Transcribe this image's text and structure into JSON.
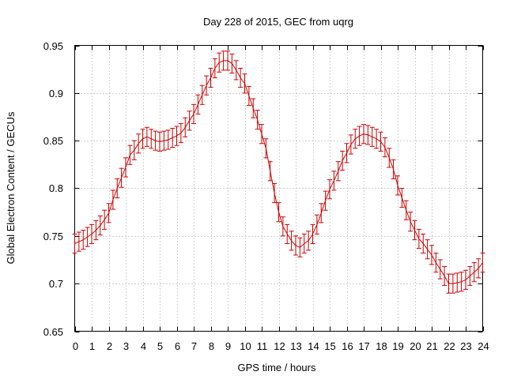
{
  "chart_data": {
    "type": "line",
    "title": "Day 228 of 2015, GEC from uqrg",
    "xlabel": "GPS time / hours",
    "ylabel": "Global Electron Content / GECUs",
    "xlim": [
      0,
      24
    ],
    "ylim": [
      0.65,
      0.95
    ],
    "xticks": [
      "0",
      "1",
      "2",
      "3",
      "4",
      "5",
      "6",
      "7",
      "8",
      "9",
      "10",
      "11",
      "12",
      "13",
      "14",
      "15",
      "16",
      "17",
      "18",
      "19",
      "20",
      "21",
      "22",
      "23",
      "24"
    ],
    "yticks": [
      "0.65",
      "0.7",
      "0.75",
      "0.8",
      "0.85",
      "0.9",
      "0.95"
    ],
    "grid": true,
    "color": "#cc0000",
    "error": 0.01,
    "series": [
      {
        "x": [
          0,
          0.25,
          0.5,
          0.75,
          1,
          1.25,
          1.5,
          1.75,
          2,
          2.25,
          2.5,
          2.75,
          3,
          3.25,
          3.5,
          3.75,
          4,
          4.25,
          4.5,
          4.75,
          5,
          5.25,
          5.5,
          5.75,
          6,
          6.25,
          6.5,
          6.75,
          7,
          7.25,
          7.5,
          7.75,
          8,
          8.25,
          8.5,
          8.75,
          9,
          9.25,
          9.5,
          9.75,
          10,
          10.25,
          10.5,
          10.75,
          11,
          11.25,
          11.5,
          11.75,
          12,
          12.25,
          12.5,
          12.75,
          13,
          13.25,
          13.5,
          13.75,
          14,
          14.25,
          14.5,
          14.75,
          15,
          15.25,
          15.5,
          15.75,
          16,
          16.25,
          16.5,
          16.75,
          17,
          17.25,
          17.5,
          17.75,
          18,
          18.25,
          18.5,
          18.75,
          19,
          19.25,
          19.5,
          19.75,
          20,
          20.25,
          20.5,
          20.75,
          21,
          21.25,
          21.5,
          21.75,
          22,
          22.25,
          22.5,
          22.75,
          23,
          23.25,
          23.5,
          23.75,
          24
        ],
        "y": [
          0.742,
          0.744,
          0.746,
          0.749,
          0.752,
          0.756,
          0.761,
          0.767,
          0.774,
          0.788,
          0.8,
          0.811,
          0.822,
          0.835,
          0.84,
          0.847,
          0.852,
          0.854,
          0.852,
          0.85,
          0.849,
          0.85,
          0.851,
          0.853,
          0.855,
          0.858,
          0.864,
          0.871,
          0.878,
          0.888,
          0.898,
          0.908,
          0.916,
          0.926,
          0.932,
          0.934,
          0.934,
          0.931,
          0.924,
          0.916,
          0.91,
          0.897,
          0.884,
          0.872,
          0.857,
          0.842,
          0.818,
          0.795,
          0.775,
          0.76,
          0.752,
          0.745,
          0.74,
          0.738,
          0.742,
          0.745,
          0.752,
          0.762,
          0.774,
          0.787,
          0.799,
          0.808,
          0.818,
          0.829,
          0.837,
          0.846,
          0.852,
          0.855,
          0.857,
          0.856,
          0.854,
          0.852,
          0.849,
          0.843,
          0.832,
          0.82,
          0.803,
          0.79,
          0.777,
          0.765,
          0.756,
          0.747,
          0.742,
          0.736,
          0.73,
          0.722,
          0.715,
          0.708,
          0.7,
          0.7,
          0.701,
          0.702,
          0.704,
          0.708,
          0.712,
          0.716,
          0.722
        ]
      }
    ]
  }
}
